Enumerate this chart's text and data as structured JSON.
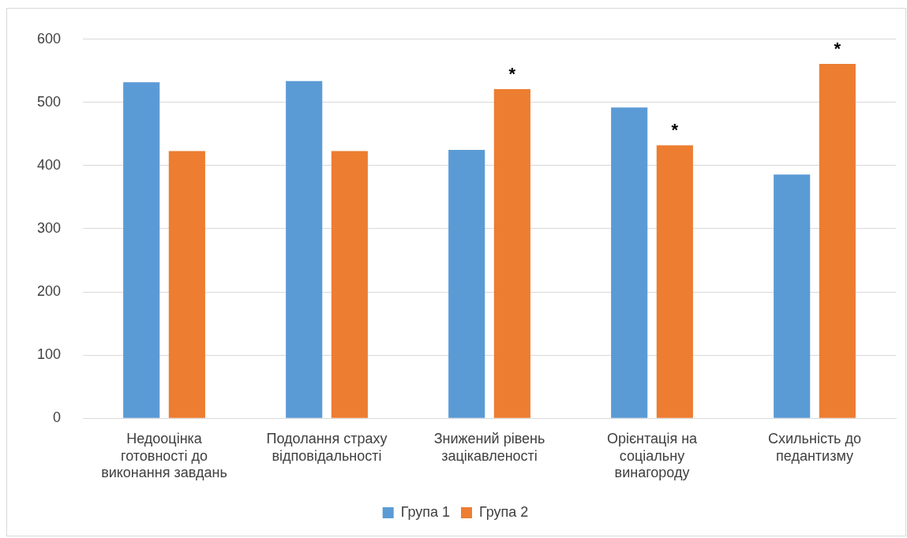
{
  "chart_data": {
    "type": "bar",
    "categories": [
      "Недооцінка готовності до виконання завдань",
      "Подолання страху відповідальності",
      "Знижений рівень зацікавленості",
      "Орієнтація на соціальну винагороду",
      "Схильність до педантизму"
    ],
    "series": [
      {
        "name": "Група 1",
        "color": "#5b9bd5",
        "values": [
          532,
          534,
          425,
          492,
          386
        ]
      },
      {
        "name": "Група 2",
        "color": "#ed7d31",
        "values": [
          423,
          423,
          521,
          432,
          561
        ],
        "value_labels": [
          null,
          null,
          "*",
          "*",
          "*"
        ]
      }
    ],
    "ylim": [
      0,
      600
    ],
    "yticks": [
      0,
      100,
      200,
      300,
      400,
      500,
      600
    ],
    "grid": "y",
    "legend": "bottom"
  }
}
